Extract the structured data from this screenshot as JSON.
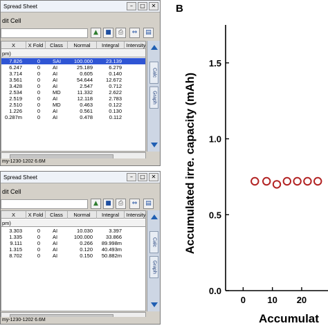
{
  "window1": {
    "title": "Spread Sheet",
    "edit_cell_label": "dit Cell",
    "columns": [
      "X",
      "X Fold",
      "Class",
      "Normal",
      "Integral",
      "Intensity"
    ],
    "unit_row": "pm)",
    "rows": [
      {
        "x": "7.826",
        "fold": "0",
        "cls": "SAI",
        "normal": "100.000",
        "integral": "23.139",
        "selected": true
      },
      {
        "x": "6.247",
        "fold": "0",
        "cls": "AI",
        "normal": "25.189",
        "integral": "6.279",
        "selected": false
      },
      {
        "x": "3.714",
        "fold": "0",
        "cls": "AI",
        "normal": "0.605",
        "integral": "0.140",
        "selected": false
      },
      {
        "x": "3.561",
        "fold": "0",
        "cls": "AI",
        "normal": "54.644",
        "integral": "12.672",
        "selected": false
      },
      {
        "x": "3.428",
        "fold": "0",
        "cls": "AI",
        "normal": "2.547",
        "integral": "0.712",
        "selected": false
      },
      {
        "x": "2.534",
        "fold": "0",
        "cls": "MD",
        "normal": "11.332",
        "integral": "2.622",
        "selected": false
      },
      {
        "x": "2.519",
        "fold": "0",
        "cls": "AI",
        "normal": "12.118",
        "integral": "2.783",
        "selected": false
      },
      {
        "x": "2.510",
        "fold": "0",
        "cls": "MD",
        "normal": "0.463",
        "integral": "0.122",
        "selected": false
      },
      {
        "x": "1.226",
        "fold": "0",
        "cls": "AI",
        "normal": "0.561",
        "integral": "0.130",
        "selected": false
      },
      {
        "x": "0.287m",
        "fold": "0",
        "cls": "AI",
        "normal": "0.478",
        "integral": "0.112",
        "selected": false
      }
    ],
    "status": "my-1230-1202 6.6M"
  },
  "window2": {
    "title": "Spread Sheet",
    "edit_cell_label": "dit Cell",
    "columns": [
      "X",
      "X Fold",
      "Class",
      "Normal",
      "Integral",
      "Intensity"
    ],
    "unit_row": "pm)",
    "rows": [
      {
        "x": "3.303",
        "fold": "0",
        "cls": "AI",
        "normal": "10.030",
        "integral": "3.397",
        "selected": false
      },
      {
        "x": "1.335",
        "fold": "0",
        "cls": "AI",
        "normal": "100.000",
        "integral": "33.866",
        "selected": false
      },
      {
        "x": "9.111",
        "fold": "0",
        "cls": "AI",
        "normal": "0.266",
        "integral": "89.998m",
        "selected": false
      },
      {
        "x": "1.315",
        "fold": "0",
        "cls": "AI",
        "normal": "0.120",
        "integral": "40.493m",
        "selected": false
      },
      {
        "x": "8.702",
        "fold": "0",
        "cls": "AI",
        "normal": "0.150",
        "integral": "50.882m",
        "selected": false
      }
    ],
    "status": "my-1230-1202 6.6M"
  },
  "sidebar": {
    "calc": "Calc",
    "graph": "Graph"
  },
  "panel_label": "B",
  "chart_data": {
    "type": "scatter",
    "ylabel": "Accumulated irre. capacity (mAh)",
    "xlabel": "Accumulat",
    "ylim": [
      0,
      1.75
    ],
    "yticks": [
      "0.0",
      "0.5",
      "1.0",
      "1.5"
    ],
    "ytick_values": [
      0,
      0.5,
      1.0,
      1.5
    ],
    "xticks": [
      "0",
      "10",
      "20"
    ],
    "xtick_values": [
      0,
      10,
      20
    ],
    "xlim": [
      -6,
      29
    ],
    "x": [
      4,
      8,
      11.5,
      15,
      18.5,
      22,
      25.5
    ],
    "y": [
      0.72,
      0.72,
      0.7,
      0.72,
      0.72,
      0.72,
      0.72
    ],
    "marker_color": "#b22222"
  }
}
